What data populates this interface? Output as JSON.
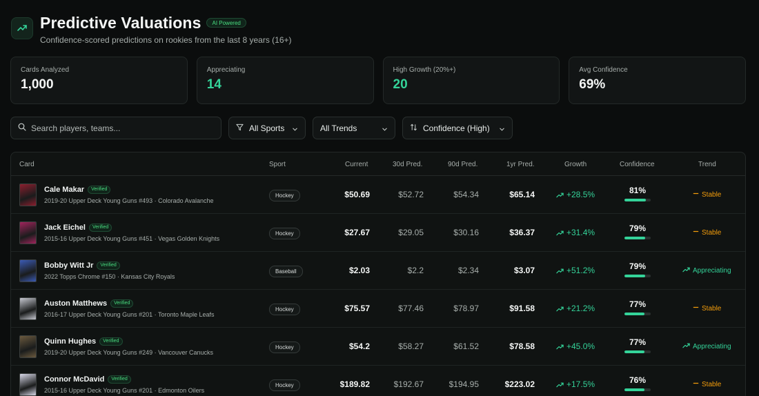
{
  "header": {
    "title": "Predictive Valuations",
    "badge": "AI Powered",
    "subtitle": "Confidence-scored predictions on rookies from the last 8 years (16+)"
  },
  "stats": [
    {
      "label": "Cards Analyzed",
      "value": "1,000",
      "accent": false
    },
    {
      "label": "Appreciating",
      "value": "14",
      "accent": true
    },
    {
      "label": "High Growth (20%+)",
      "value": "20",
      "accent": true
    },
    {
      "label": "Avg Confidence",
      "value": "69%",
      "accent": false
    }
  ],
  "filters": {
    "search_placeholder": "Search players, teams...",
    "sport": "All Sports",
    "trend": "All Trends",
    "sort": "Confidence (High)"
  },
  "table": {
    "columns": [
      "Card",
      "Sport",
      "Current",
      "30d Pred.",
      "90d Pred.",
      "1yr Pred.",
      "Growth",
      "Confidence",
      "Trend"
    ],
    "rows": [
      {
        "name": "Cale Makar",
        "verified": "Verified",
        "desc": "2019-20 Upper Deck Young Guns #493 · Colorado Avalanche",
        "sport": "Hockey",
        "current": "$50.69",
        "d30": "$52.72",
        "d90": "$54.34",
        "y1": "$65.14",
        "growth": "+28.5%",
        "confidence": "81%",
        "confidence_pct": 81,
        "trend": "Stable",
        "thumb": "#8b1e2e"
      },
      {
        "name": "Jack Eichel",
        "verified": "Verified",
        "desc": "2015-16 Upper Deck Young Guns #451 · Vegas Golden Knights",
        "sport": "Hockey",
        "current": "$27.67",
        "d30": "$29.05",
        "d90": "$30.16",
        "y1": "$36.37",
        "growth": "+31.4%",
        "confidence": "79%",
        "confidence_pct": 79,
        "trend": "Stable",
        "thumb": "#a0245c"
      },
      {
        "name": "Bobby Witt Jr",
        "verified": "Verified",
        "desc": "2022 Topps Chrome #150 · Kansas City Royals",
        "sport": "Baseball",
        "current": "$2.03",
        "d30": "$2.2",
        "d90": "$2.34",
        "y1": "$3.07",
        "growth": "+51.2%",
        "confidence": "79%",
        "confidence_pct": 79,
        "trend": "Appreciating",
        "thumb": "#3b5bb5"
      },
      {
        "name": "Auston Matthews",
        "verified": "Verified",
        "desc": "2016-17 Upper Deck Young Guns #201 · Toronto Maple Leafs",
        "sport": "Hockey",
        "current": "$75.57",
        "d30": "$77.46",
        "d90": "$78.97",
        "y1": "$91.58",
        "growth": "+21.2%",
        "confidence": "77%",
        "confidence_pct": 77,
        "trend": "Stable",
        "thumb": "#c7c9d1"
      },
      {
        "name": "Quinn Hughes",
        "verified": "Verified",
        "desc": "2019-20 Upper Deck Young Guns #249 · Vancouver Canucks",
        "sport": "Hockey",
        "current": "$54.2",
        "d30": "$58.27",
        "d90": "$61.52",
        "y1": "$78.58",
        "growth": "+45.0%",
        "confidence": "77%",
        "confidence_pct": 77,
        "trend": "Appreciating",
        "thumb": "#6b5a3e"
      },
      {
        "name": "Connor McDavid",
        "verified": "Verified",
        "desc": "2015-16 Upper Deck Young Guns #201 · Edmonton Oilers",
        "sport": "Hockey",
        "current": "$189.82",
        "d30": "$192.67",
        "d90": "$194.95",
        "y1": "$223.02",
        "growth": "+17.5%",
        "confidence": "76%",
        "confidence_pct": 76,
        "trend": "Stable",
        "thumb": "#d8d8e8"
      }
    ]
  },
  "colors": {
    "accent": "#34d399",
    "stable": "#f59e0b",
    "background": "#0b0d0d"
  }
}
